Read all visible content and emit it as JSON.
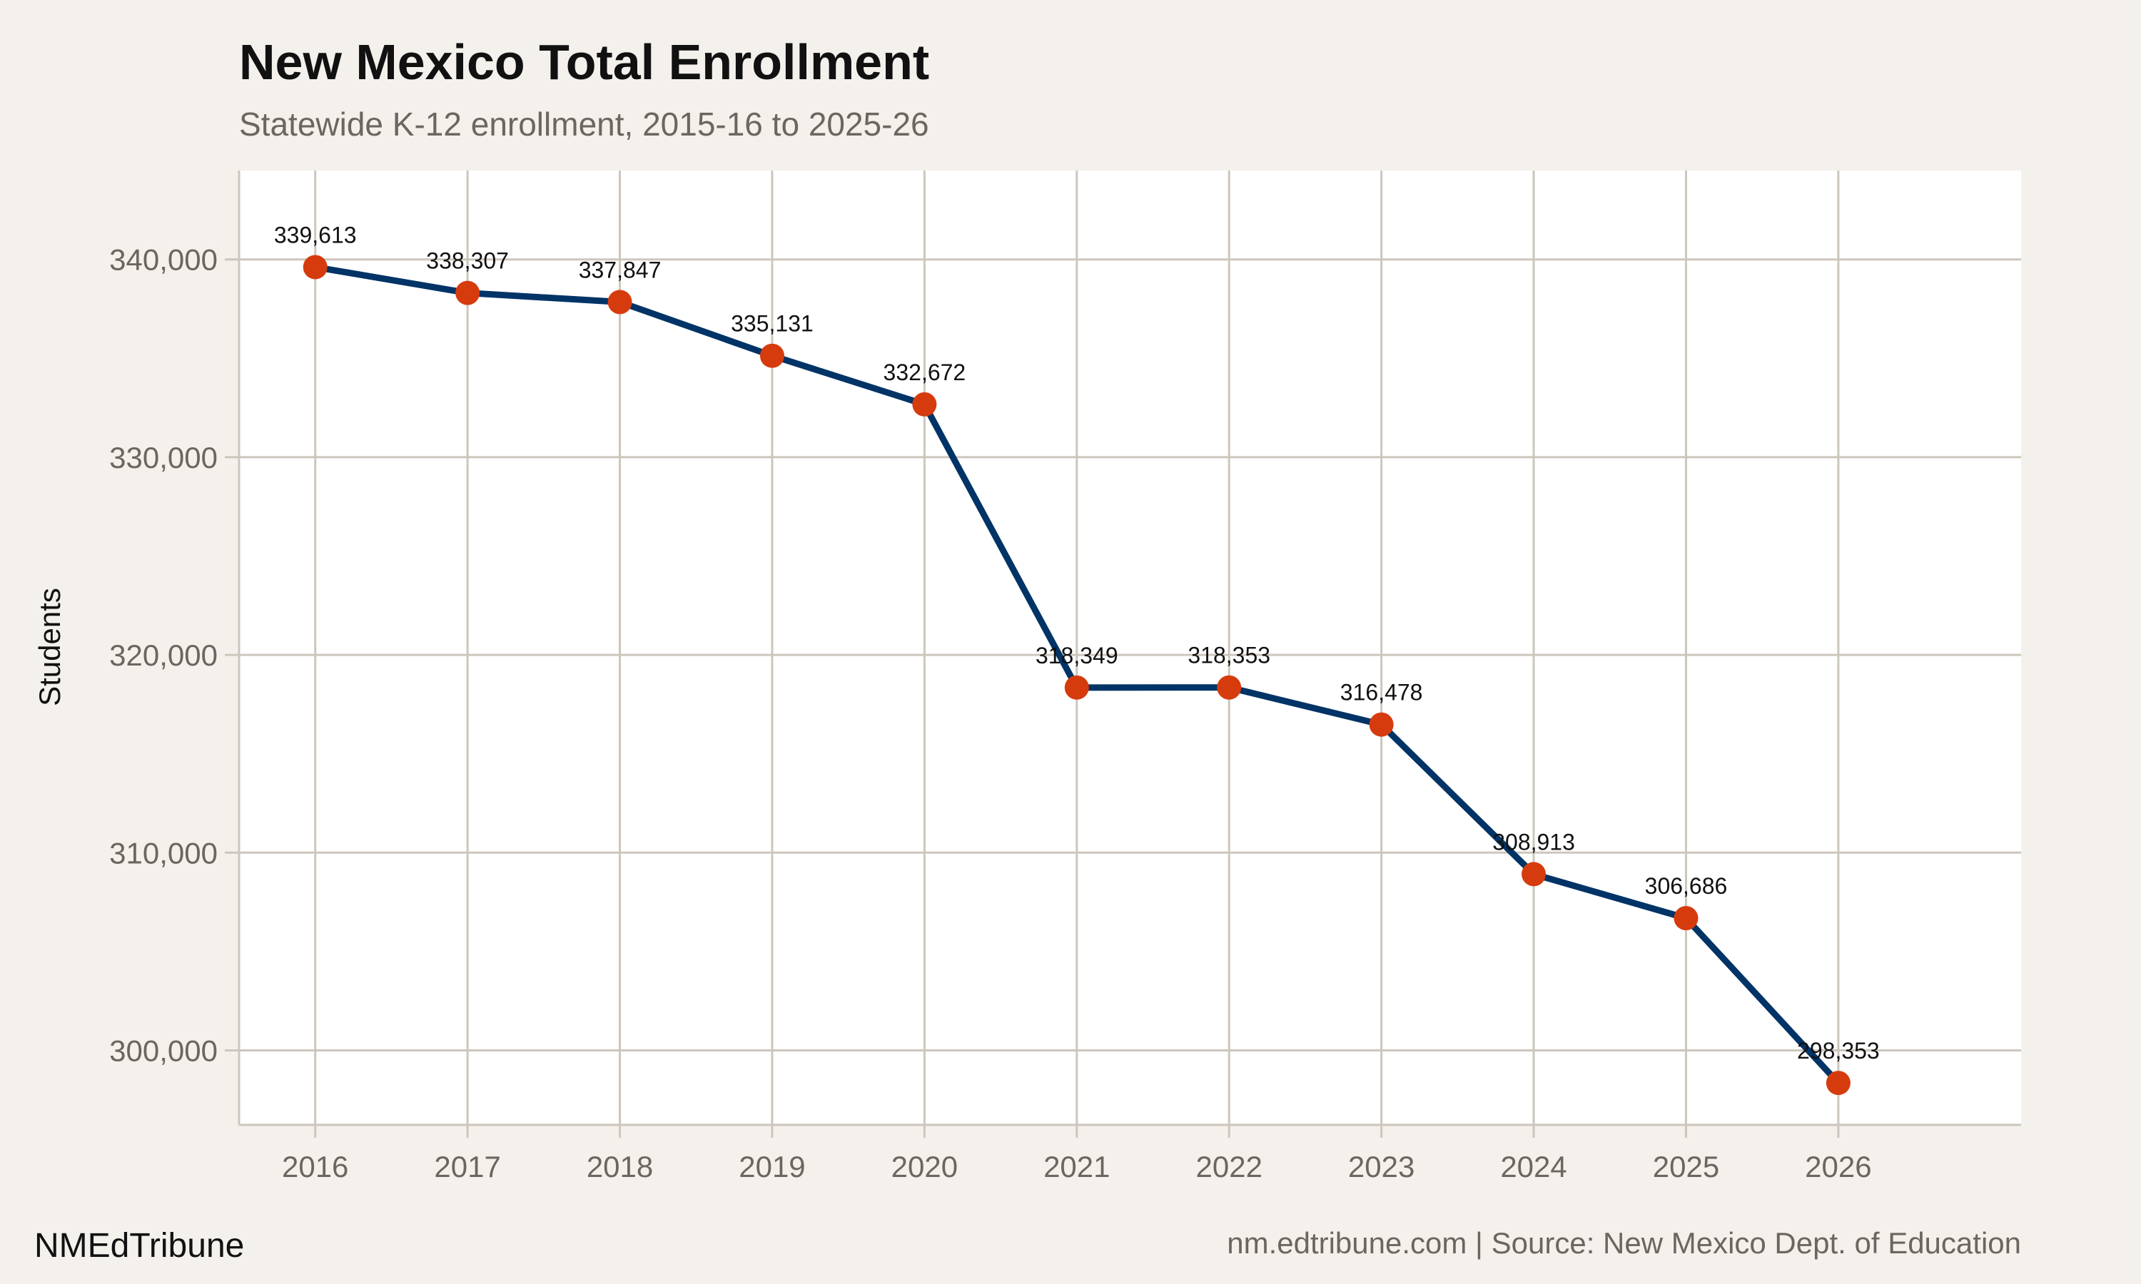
{
  "chart_data": {
    "type": "line",
    "title": "New Mexico Total Enrollment",
    "subtitle": "Statewide K-12 enrollment, 2015-16 to 2025-26",
    "xlabel": "",
    "ylabel": "Students",
    "x": [
      2016,
      2017,
      2018,
      2019,
      2020,
      2021,
      2022,
      2023,
      2024,
      2025,
      2026
    ],
    "values": [
      339613,
      338307,
      337847,
      335131,
      332672,
      318349,
      318353,
      316478,
      308913,
      306686,
      298353
    ],
    "data_labels": [
      "339,613",
      "338,307",
      "337,847",
      "335,131",
      "332,672",
      "318,349",
      "318,353",
      "316,478",
      "308,913",
      "306,686",
      "298,353"
    ],
    "x_ticks": [
      "2016",
      "2017",
      "2018",
      "2019",
      "2020",
      "2021",
      "2022",
      "2023",
      "2024",
      "2025",
      "2026"
    ],
    "y_ticks": [
      300000,
      310000,
      320000,
      330000,
      340000
    ],
    "y_tick_labels": [
      "300,000",
      "310,000",
      "320,000",
      "330,000",
      "340,000"
    ],
    "xlim": [
      2015.5,
      2027.2
    ],
    "ylim": [
      296300,
      344500
    ],
    "grid": true,
    "colors": {
      "line": "#003366",
      "marker": "#d63b0d",
      "grid": "#cdc6bc",
      "background": "#f4f1ec",
      "panel": "#ffffff"
    }
  },
  "footer": {
    "brand": "NMEdTribune",
    "source": "nm.edtribune.com | Source: New Mexico Dept. of Education"
  }
}
